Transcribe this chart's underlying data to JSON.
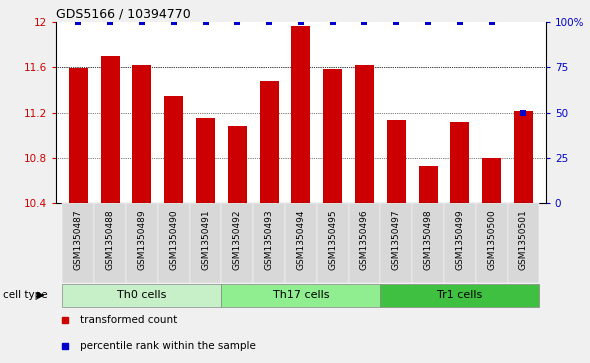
{
  "title": "GDS5166 / 10394770",
  "categories": [
    "GSM1350487",
    "GSM1350488",
    "GSM1350489",
    "GSM1350490",
    "GSM1350491",
    "GSM1350492",
    "GSM1350493",
    "GSM1350494",
    "GSM1350495",
    "GSM1350496",
    "GSM1350497",
    "GSM1350498",
    "GSM1350499",
    "GSM1350500",
    "GSM1350501"
  ],
  "bar_values": [
    11.59,
    11.7,
    11.62,
    11.35,
    11.15,
    11.08,
    11.48,
    11.96,
    11.58,
    11.62,
    11.13,
    10.73,
    11.12,
    10.8,
    11.21
  ],
  "percentile_values": [
    100,
    100,
    100,
    100,
    100,
    100,
    100,
    100,
    100,
    100,
    100,
    100,
    100,
    100,
    50
  ],
  "bar_color": "#cc0000",
  "dot_color": "#0000cc",
  "ylim_left": [
    10.4,
    12.0
  ],
  "ylim_right": [
    0,
    100
  ],
  "yticks_left": [
    10.4,
    10.8,
    11.2,
    11.6,
    12.0
  ],
  "ytick_labels_left": [
    "10.4",
    "10.8",
    "11.2",
    "11.6",
    "12"
  ],
  "yticks_right": [
    0,
    25,
    50,
    75,
    100
  ],
  "ytick_labels_right": [
    "0",
    "25",
    "50",
    "75",
    "100%"
  ],
  "cell_type_groups": [
    {
      "label": "Th0 cells",
      "start": 0,
      "end": 5,
      "color": "#c8f0c8"
    },
    {
      "label": "Th17 cells",
      "start": 5,
      "end": 10,
      "color": "#90ee90"
    },
    {
      "label": "Tr1 cells",
      "start": 10,
      "end": 15,
      "color": "#50c850"
    }
  ],
  "cell_type_label": "cell type",
  "legend_entries": [
    {
      "label": "transformed count",
      "color": "#cc0000"
    },
    {
      "label": "percentile rank within the sample",
      "color": "#0000cc"
    }
  ],
  "left_axis_color": "#cc0000",
  "right_axis_color": "#0000cc",
  "background_color": "#f0f0f0",
  "plot_bg_color": "#ffffff",
  "bar_bottom": 10.4,
  "tick_label_bg": "#d8d8d8"
}
